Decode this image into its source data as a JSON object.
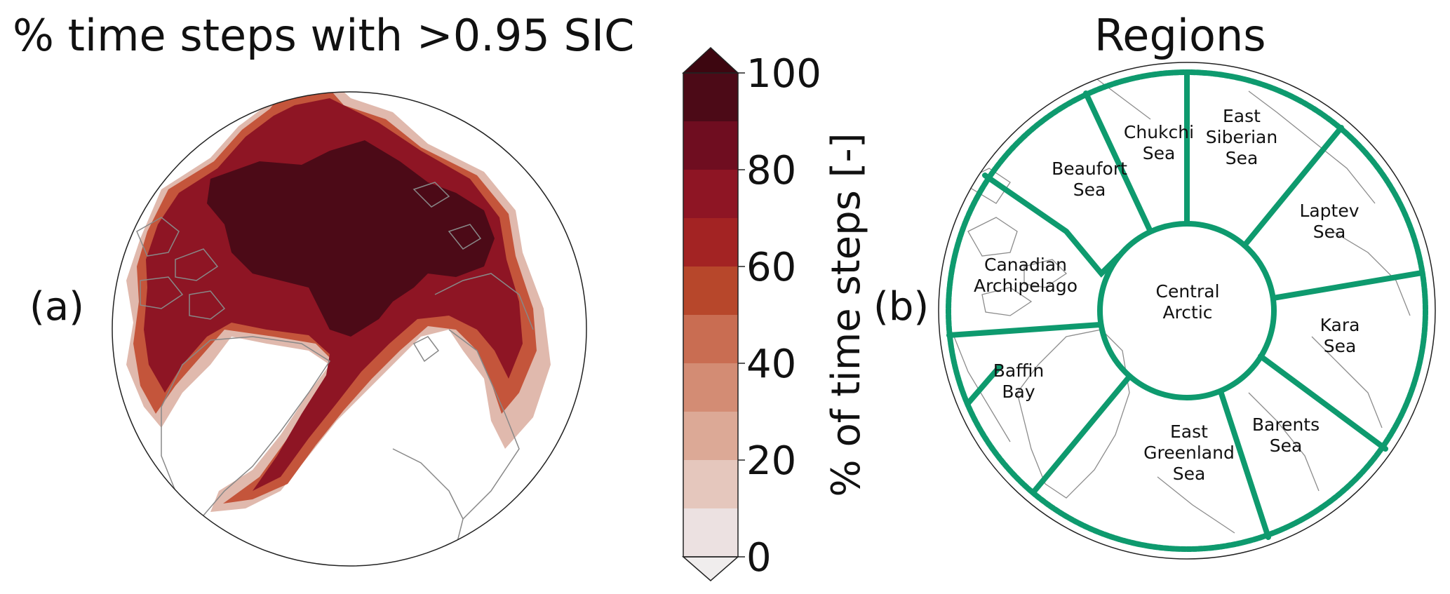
{
  "figure": {
    "panel_a": {
      "title": "% time steps with >0.95 SIC",
      "label": "(a)"
    },
    "panel_b": {
      "title": "Regions",
      "label": "(b)",
      "regions": [
        {
          "lines": [
            "Chukchi",
            "Sea"
          ]
        },
        {
          "lines": [
            "East",
            "Siberian",
            "Sea"
          ]
        },
        {
          "lines": [
            "Beaufort",
            "Sea"
          ]
        },
        {
          "lines": [
            "Laptev",
            "Sea"
          ]
        },
        {
          "lines": [
            "Canadian",
            "Archipelago"
          ]
        },
        {
          "lines": [
            "Central",
            "Arctic"
          ]
        },
        {
          "lines": [
            "Kara",
            "Sea"
          ]
        },
        {
          "lines": [
            "Baffin",
            "Bay"
          ]
        },
        {
          "lines": [
            "Barents",
            "Sea"
          ]
        },
        {
          "lines": [
            "East",
            "Greenland",
            "Sea"
          ]
        }
      ],
      "boundary_color": "#0e9a6e"
    },
    "colorbar": {
      "label": "% of time steps [-]",
      "ticks": [
        "0",
        "20",
        "40",
        "60",
        "80",
        "100"
      ],
      "min": 0,
      "max": 100,
      "levels": [
        0,
        10,
        20,
        30,
        40,
        50,
        60,
        70,
        80,
        90,
        100
      ],
      "colors": [
        "#ece1e1",
        "#e5c7bd",
        "#dca996",
        "#d38c74",
        "#c96d52",
        "#b7472b",
        "#a32323",
        "#8e1524",
        "#6f0d20",
        "#4c0a17"
      ],
      "under_color": "#f0eded",
      "over_color": "#3d0610"
    }
  }
}
